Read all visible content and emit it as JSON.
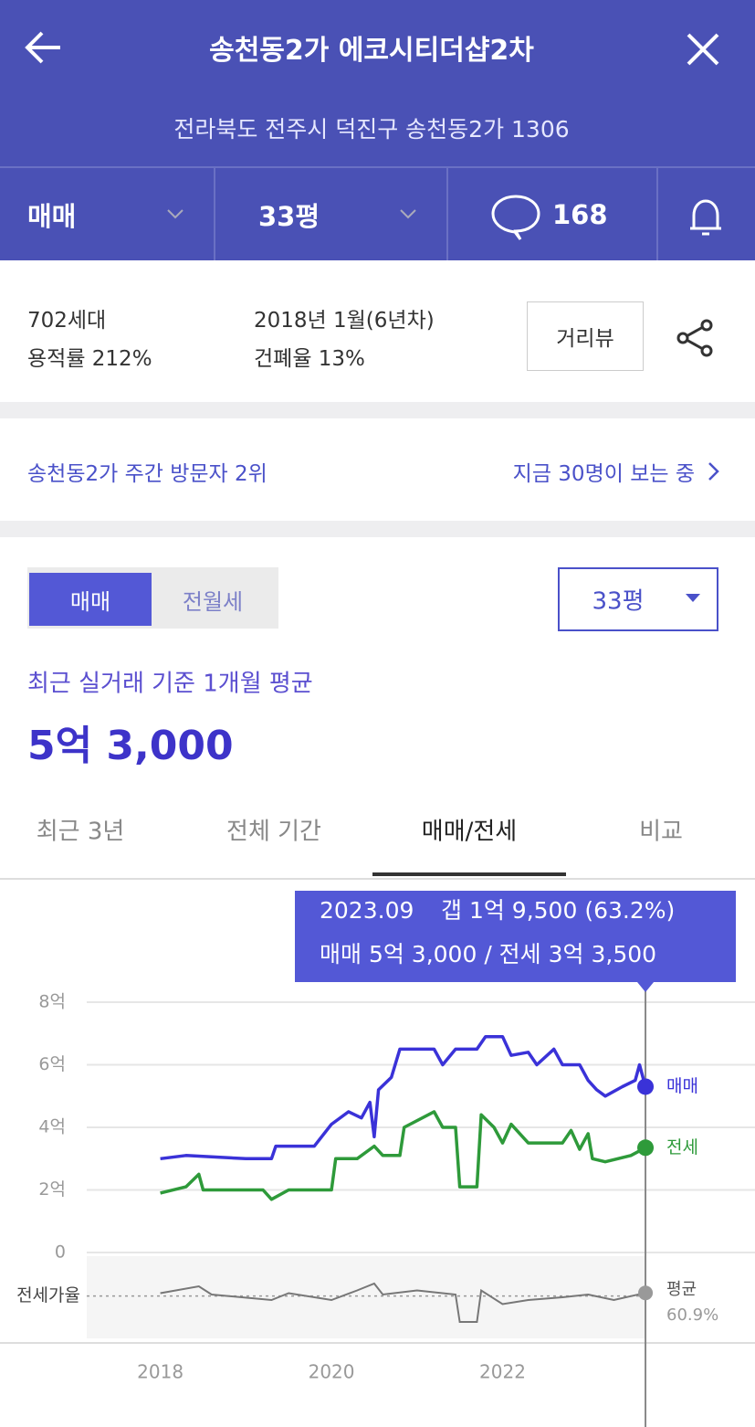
{
  "header": {
    "title": "송천동2가 에코시티더샵2차",
    "address": "전라북도 전주시 덕진구 송천동2가 1306"
  },
  "filters": {
    "deal_type": "매매",
    "size": "33평",
    "comments": "168"
  },
  "info": {
    "households": "702세대",
    "built": "2018년 1월(6년차)",
    "far": "용적률 212%",
    "bcr": "건폐율 13%",
    "street_view": "거리뷰"
  },
  "ranking": {
    "rank": "송천동2가 주간 방문자 2위",
    "viewers": "지금 30명이 보는 중"
  },
  "price": {
    "toggle": [
      "매매",
      "전월세"
    ],
    "toggle_active": 0,
    "size": "33평",
    "caption": "최근 실거래 기준 1개월 평균",
    "value": "5억 3,000"
  },
  "tabs": {
    "items": [
      "최근 3년",
      "전체 기간",
      "매매/전세",
      "비교"
    ],
    "active": 2
  },
  "chart_data": {
    "type": "line",
    "tooltip": {
      "date": "2023.09",
      "gap": "갭 1억 9,500 (63.2%)",
      "detail": "매매 5억 3,000 / 전세 3억 3,500"
    },
    "xlim": [
      2017.14,
      2024.95
    ],
    "xticks": [
      2018,
      2020,
      2022
    ],
    "ylim": [
      0,
      8
    ],
    "yticks": [
      0,
      {
        "value": 2,
        "label": "2억"
      },
      {
        "value": 4,
        "label": "4억"
      },
      {
        "value": 6,
        "label": "6억"
      },
      {
        "value": 8,
        "label": "8억"
      }
    ],
    "grid": true,
    "series": [
      {
        "name": "매매",
        "color": "#3a32d8",
        "x": [
          2018.0,
          2018.3,
          2019.0,
          2019.3,
          2019.35,
          2019.8,
          2020.0,
          2020.2,
          2020.35,
          2020.45,
          2020.5,
          2020.55,
          2020.7,
          2020.8,
          2021.0,
          2021.2,
          2021.3,
          2021.45,
          2021.7,
          2021.8,
          2022.0,
          2022.1,
          2022.3,
          2022.4,
          2022.6,
          2022.7,
          2022.9,
          2023.0,
          2023.1,
          2023.2,
          2023.4,
          2023.55,
          2023.6,
          2023.67
        ],
        "values": [
          3.0,
          3.1,
          3.0,
          3.0,
          3.4,
          3.4,
          4.1,
          4.5,
          4.3,
          4.8,
          3.7,
          5.2,
          5.6,
          6.5,
          6.5,
          6.5,
          6.0,
          6.5,
          6.5,
          6.9,
          6.9,
          6.3,
          6.4,
          6.0,
          6.5,
          6.0,
          6.0,
          5.5,
          5.2,
          5.0,
          5.3,
          5.5,
          6.0,
          5.3
        ]
      },
      {
        "name": "전세",
        "color": "#2e9a3a",
        "x": [
          2018.0,
          2018.3,
          2018.45,
          2018.5,
          2019.0,
          2019.2,
          2019.3,
          2019.5,
          2020.0,
          2020.05,
          2020.3,
          2020.5,
          2020.6,
          2020.8,
          2020.85,
          2021.2,
          2021.3,
          2021.45,
          2021.5,
          2021.7,
          2021.75,
          2021.9,
          2022.0,
          2022.1,
          2022.3,
          2022.5,
          2022.7,
          2022.8,
          2022.9,
          2023.0,
          2023.05,
          2023.2,
          2023.5,
          2023.67
        ],
        "values": [
          1.9,
          2.1,
          2.5,
          2.0,
          2.0,
          2.0,
          1.7,
          2.0,
          2.0,
          3.0,
          3.0,
          3.4,
          3.1,
          3.1,
          4.0,
          4.5,
          4.0,
          4.0,
          2.1,
          2.1,
          4.4,
          4.0,
          3.5,
          4.1,
          3.5,
          3.5,
          3.5,
          3.9,
          3.3,
          3.8,
          3.0,
          2.9,
          3.1,
          3.35
        ]
      }
    ],
    "ratio": {
      "label": "전세가율",
      "average_label": "평균",
      "average": {
        "value": 60.9,
        "label": "60.9%"
      },
      "color": "#777777",
      "ylim": [
        30,
        90
      ],
      "x": [
        2018.0,
        2018.45,
        2018.6,
        2019.3,
        2019.5,
        2020.0,
        2020.3,
        2020.5,
        2020.6,
        2021.0,
        2021.45,
        2021.5,
        2021.7,
        2021.75,
        2022.0,
        2022.3,
        2022.7,
        2023.0,
        2023.3,
        2023.67
      ],
      "values": [
        63,
        68,
        62,
        58,
        63,
        58,
        65,
        70,
        62,
        65,
        62,
        42,
        42,
        65,
        55,
        58,
        60,
        62,
        58,
        63.2
      ]
    }
  }
}
